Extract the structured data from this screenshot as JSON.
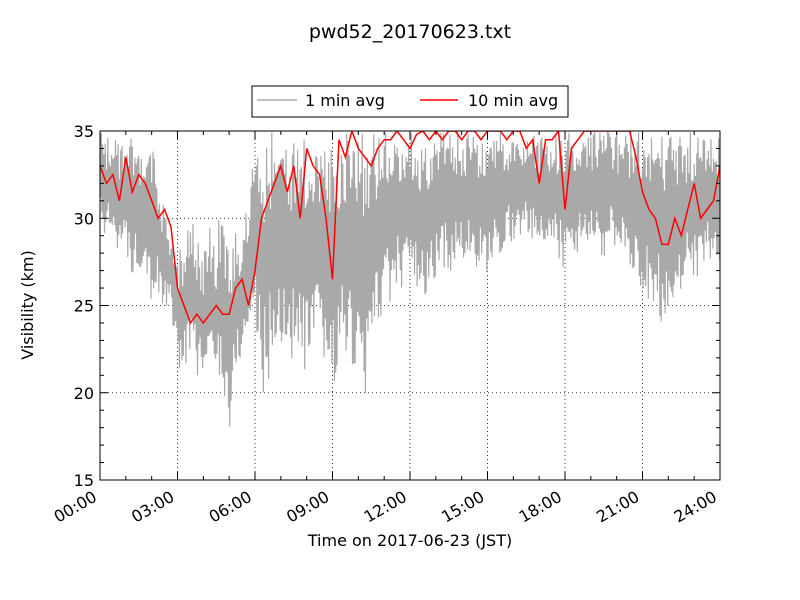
{
  "chart_data": {
    "type": "line",
    "title": "pwd52_20170623.txt",
    "xlabel": "Time on 2017-06-23 (JST)",
    "ylabel": "Visibility (km)",
    "xlim": [
      0,
      24
    ],
    "ylim": [
      15,
      35
    ],
    "x_ticks": [
      0,
      3,
      6,
      9,
      12,
      15,
      18,
      21,
      24
    ],
    "x_tick_labels": [
      "00:00",
      "03:00",
      "06:00",
      "09:00",
      "12:00",
      "15:00",
      "18:00",
      "21:00",
      "24:00"
    ],
    "y_ticks": [
      15,
      20,
      25,
      30,
      35
    ],
    "y_tick_labels": [
      "15",
      "20",
      "25",
      "30",
      "35"
    ],
    "grid": true,
    "legend_position": "top-center, above plot",
    "colors": {
      "one_min": "#a9a9a9",
      "ten_min": "#ff0000"
    },
    "series": [
      {
        "name": "1 min avg",
        "note_points": "downsampled envelope of the 1-minute series",
        "x": [
          0.0,
          0.25,
          0.5,
          0.75,
          1.0,
          1.25,
          1.5,
          1.75,
          2.0,
          2.25,
          2.5,
          2.75,
          3.0,
          3.25,
          3.5,
          3.75,
          4.0,
          4.25,
          4.5,
          4.75,
          5.0,
          5.25,
          5.5,
          5.75,
          6.0,
          6.25,
          6.5,
          6.75,
          7.0,
          7.25,
          7.5,
          7.75,
          8.0,
          8.25,
          8.5,
          8.75,
          9.0,
          9.25,
          9.5,
          9.75,
          10.0,
          10.25,
          10.5,
          10.75,
          11.0,
          11.25,
          11.5,
          11.75,
          12.0,
          12.25,
          12.5,
          12.75,
          13.0,
          13.25,
          13.5,
          13.75,
          14.0,
          14.25,
          14.5,
          14.75,
          15.0,
          15.25,
          15.5,
          15.75,
          16.0,
          16.25,
          16.5,
          16.75,
          17.0,
          17.25,
          17.5,
          17.75,
          18.0,
          18.25,
          18.5,
          18.75,
          19.0,
          19.25,
          19.5,
          19.75,
          20.0,
          20.25,
          20.5,
          20.75,
          21.0,
          21.25,
          21.5,
          21.75,
          22.0,
          22.25,
          22.5,
          22.75,
          23.0,
          23.25,
          23.5,
          23.75,
          24.0
        ],
        "y_max": [
          35.0,
          35.0,
          35.0,
          34.5,
          34.8,
          35.0,
          34.0,
          33.0,
          34.5,
          32.5,
          30.5,
          28.5,
          28.0,
          28.5,
          30.5,
          29.0,
          28.0,
          29.5,
          28.5,
          32.0,
          28.0,
          30.0,
          29.0,
          31.5,
          35.0,
          35.0,
          35.0,
          35.0,
          35.0,
          35.0,
          35.0,
          35.0,
          35.0,
          35.0,
          35.0,
          35.0,
          35.0,
          35.0,
          35.0,
          35.0,
          35.0,
          35.0,
          35.0,
          35.0,
          35.0,
          35.0,
          35.0,
          35.0,
          35.0,
          35.0,
          35.0,
          35.0,
          35.0,
          35.0,
          35.0,
          35.0,
          35.0,
          35.0,
          35.0,
          35.0,
          35.0,
          35.0,
          35.0,
          35.0,
          35.0,
          35.0,
          35.0,
          35.0,
          35.0,
          35.0,
          35.0,
          35.0,
          35.0,
          35.0,
          35.0,
          35.0,
          35.0,
          35.0,
          35.0,
          35.0,
          35.0,
          35.0,
          35.0,
          35.0,
          35.0,
          35.0,
          35.0,
          35.0,
          35.0,
          35.0,
          35.0,
          35.0,
          35.0,
          35.0,
          35.0,
          35.0,
          35.0
        ],
        "y_min": [
          29.5,
          28.5,
          29.0,
          28.0,
          27.5,
          26.5,
          27.0,
          27.5,
          25.0,
          25.5,
          24.5,
          25.0,
          21.0,
          21.5,
          22.0,
          21.0,
          20.5,
          21.5,
          21.0,
          20.5,
          17.0,
          21.0,
          22.0,
          23.0,
          24.5,
          19.5,
          20.5,
          22.0,
          22.5,
          21.5,
          22.0,
          21.0,
          20.5,
          22.0,
          21.5,
          21.0,
          19.5,
          21.5,
          22.5,
          20.5,
          21.0,
          18.5,
          22.0,
          24.0,
          24.5,
          25.0,
          26.0,
          26.0,
          26.5,
          25.5,
          24.5,
          25.5,
          26.5,
          27.0,
          27.0,
          27.0,
          27.5,
          27.5,
          27.0,
          26.5,
          26.0,
          27.5,
          28.0,
          28.5,
          28.5,
          29.0,
          29.0,
          28.5,
          28.0,
          28.0,
          28.5,
          27.5,
          27.0,
          28.0,
          28.0,
          28.5,
          28.5,
          28.0,
          27.5,
          28.5,
          28.0,
          27.5,
          27.0,
          27.0,
          25.5,
          25.0,
          24.5,
          24.0,
          24.5,
          25.0,
          26.0,
          26.5,
          26.0,
          26.5,
          27.0,
          27.0,
          27.5
        ]
      },
      {
        "name": "10 min avg",
        "x": [
          0.0,
          0.25,
          0.5,
          0.75,
          1.0,
          1.25,
          1.5,
          1.75,
          2.0,
          2.25,
          2.5,
          2.75,
          3.0,
          3.25,
          3.5,
          3.75,
          4.0,
          4.25,
          4.5,
          4.75,
          5.0,
          5.25,
          5.5,
          5.75,
          6.0,
          6.25,
          6.5,
          6.75,
          7.0,
          7.25,
          7.5,
          7.75,
          8.0,
          8.25,
          8.5,
          8.75,
          9.0,
          9.25,
          9.5,
          9.75,
          10.0,
          10.25,
          10.5,
          10.75,
          11.0,
          11.25,
          11.5,
          11.75,
          12.0,
          12.25,
          12.5,
          12.75,
          13.0,
          13.25,
          13.5,
          13.75,
          14.0,
          14.25,
          14.5,
          14.75,
          15.0,
          15.25,
          15.5,
          15.75,
          16.0,
          16.25,
          16.5,
          16.75,
          17.0,
          17.25,
          17.5,
          17.75,
          18.0,
          18.25,
          18.5,
          18.75,
          19.0,
          19.25,
          19.5,
          19.75,
          20.0,
          20.25,
          20.5,
          20.75,
          21.0,
          21.25,
          21.5,
          21.75,
          22.0,
          22.25,
          22.5,
          22.75,
          23.0,
          23.25,
          23.5,
          23.75,
          24.0
        ],
        "y": [
          33.0,
          32.0,
          32.5,
          31.0,
          33.5,
          31.5,
          32.5,
          32.0,
          31.0,
          30.0,
          30.5,
          29.5,
          26.0,
          25.0,
          24.0,
          24.5,
          24.0,
          24.5,
          25.0,
          24.5,
          24.5,
          26.0,
          26.5,
          25.0,
          27.0,
          30.0,
          31.0,
          32.0,
          33.0,
          31.5,
          33.0,
          30.0,
          34.0,
          33.0,
          32.5,
          30.0,
          26.5,
          34.5,
          33.5,
          35.0,
          34.0,
          33.5,
          33.0,
          34.0,
          34.5,
          34.5,
          35.0,
          34.5,
          34.0,
          34.8,
          35.0,
          34.5,
          35.0,
          34.5,
          35.0,
          35.0,
          34.5,
          35.0,
          35.0,
          34.5,
          35.0,
          35.0,
          35.0,
          34.5,
          35.0,
          35.0,
          34.0,
          34.5,
          32.0,
          34.5,
          34.5,
          35.0,
          30.5,
          34.0,
          34.5,
          35.0,
          35.0,
          35.0,
          35.0,
          35.0,
          35.0,
          35.0,
          35.0,
          33.5,
          31.5,
          30.5,
          30.0,
          28.5,
          28.5,
          30.0,
          29.0,
          30.5,
          32.0,
          30.0,
          30.5,
          31.0,
          33.0
        ]
      }
    ]
  }
}
